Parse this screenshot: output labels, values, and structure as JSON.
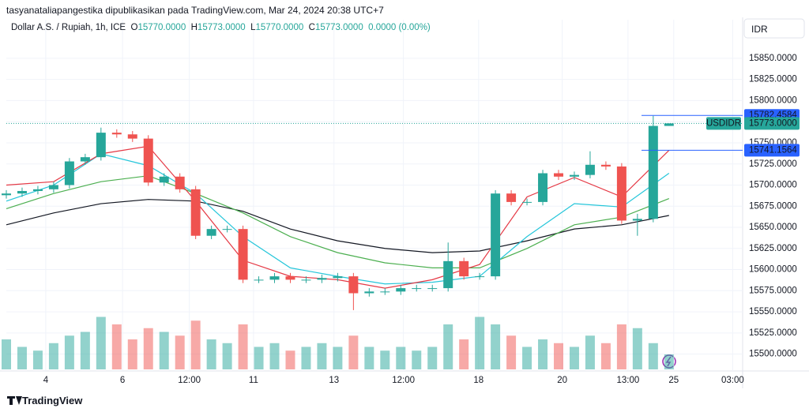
{
  "header": {
    "publisher": "tasyanataliapangestika dipublikasikan pada TradingView.com, Mar 24, 2024 20:38 UTC+7",
    "symbol": "Dollar A.S. / Rupiah, 1h, ICE",
    "o_label": "O",
    "o": "15770.0000",
    "h_label": "H",
    "h": "15773.0000",
    "l_label": "L",
    "l": "15770.0000",
    "c_label": "C",
    "c": "15773.0000",
    "change": "0.0000 (0.00%)",
    "currency": "IDR"
  },
  "footer": {
    "brand": "TradingView"
  },
  "chart_data": {
    "type": "candlestick",
    "x": [
      0,
      3,
      6,
      9,
      12,
      15,
      18,
      21,
      24,
      27,
      30,
      33,
      36,
      39,
      42,
      45,
      48,
      51,
      54,
      57,
      60,
      63,
      66,
      69,
      72,
      75,
      78,
      81,
      84,
      87,
      90,
      93,
      96,
      99,
      102,
      105,
      108,
      111,
      114,
      117,
      120,
      123,
      126
    ],
    "open": [
      15688,
      15690,
      15693,
      15695,
      15700,
      15728,
      15733,
      15762,
      15760,
      15755,
      15703,
      15710,
      15695,
      15640,
      15648,
      15648,
      15588,
      15588,
      15592,
      15588,
      15588,
      15590,
      15592,
      15572,
      15574,
      15574,
      15578,
      15578,
      15578,
      15610,
      15592,
      15592,
      15690,
      15680,
      15680,
      15714,
      15710,
      15712,
      15724,
      15722,
      15658,
      15660,
      15770
    ],
    "high": [
      15694,
      15697,
      15699,
      15704,
      15732,
      15737,
      15768,
      15766,
      15764,
      15759,
      15714,
      15714,
      15699,
      15652,
      15652,
      15652,
      15592,
      15596,
      15596,
      15592,
      15594,
      15596,
      15596,
      15578,
      15578,
      15582,
      15582,
      15582,
      15632,
      15614,
      15596,
      15694,
      15694,
      15684,
      15718,
      15718,
      15716,
      15740,
      15728,
      15726,
      15666,
      15782,
      15773
    ],
    "low": [
      15684,
      15686,
      15689,
      15691,
      15696,
      15724,
      15729,
      15756,
      15751,
      15699,
      15699,
      15691,
      15636,
      15636,
      15644,
      15584,
      15584,
      15584,
      15584,
      15584,
      15584,
      15586,
      15552,
      15568,
      15570,
      15570,
      15574,
      15574,
      15574,
      15588,
      15588,
      15588,
      15676,
      15676,
      15676,
      15706,
      15706,
      15708,
      15718,
      15654,
      15640,
      15656,
      15770
    ],
    "close": [
      15690,
      15693,
      15695,
      15700,
      15728,
      15733,
      15762,
      15760,
      15755,
      15703,
      15710,
      15695,
      15640,
      15648,
      15648,
      15588,
      15588,
      15592,
      15588,
      15588,
      15590,
      15592,
      15572,
      15574,
      15574,
      15578,
      15578,
      15578,
      15610,
      15592,
      15592,
      15690,
      15680,
      15680,
      15714,
      15710,
      15712,
      15724,
      15722,
      15658,
      15660,
      15770,
      15773
    ],
    "volume": [
      40,
      30,
      25,
      35,
      45,
      50,
      70,
      60,
      40,
      55,
      50,
      45,
      65,
      40,
      35,
      60,
      30,
      35,
      25,
      30,
      35,
      30,
      45,
      30,
      25,
      30,
      25,
      30,
      60,
      40,
      70,
      60,
      45,
      30,
      40,
      35,
      30,
      45,
      35,
      60,
      55,
      35,
      20
    ],
    "volume_lim": [
      0,
      100
    ],
    "up_color": "#26a69a",
    "down_color": "#ef5350",
    "lines": [
      {
        "color": "#131722",
        "x": [
          0,
          9,
          18,
          27,
          36,
          45,
          54,
          63,
          72,
          81,
          90,
          99,
          108,
          117,
          126
        ],
        "values": [
          15653,
          15667,
          15678,
          15683,
          15681,
          15669,
          15648,
          15634,
          15625,
          15620,
          15622,
          15634,
          15648,
          15653,
          15664
        ]
      },
      {
        "color": "#4caf50",
        "x": [
          0,
          9,
          18,
          27,
          36,
          45,
          54,
          63,
          72,
          81,
          90,
          99,
          108,
          117,
          126
        ],
        "values": [
          15672,
          15690,
          15704,
          15711,
          15690,
          15667,
          15639,
          15620,
          15608,
          15602,
          15602,
          15625,
          15653,
          15662,
          15684
        ]
      },
      {
        "color": "#26c6da",
        "x": [
          0,
          9,
          18,
          27,
          36,
          45,
          54,
          63,
          72,
          81,
          90,
          99,
          108,
          117,
          126
        ],
        "values": [
          15681,
          15700,
          15737,
          15723,
          15690,
          15639,
          15602,
          15592,
          15583,
          15585,
          15592,
          15639,
          15678,
          15674,
          15714
        ]
      },
      {
        "color": "#e53945",
        "x": [
          0,
          9,
          18,
          27,
          36,
          45,
          54,
          63,
          72,
          81,
          90,
          99,
          108,
          117,
          126
        ],
        "values": [
          15700,
          15704,
          15737,
          15746,
          15681,
          15611,
          15592,
          15588,
          15578,
          15588,
          15606,
          15686,
          15709,
          15686,
          15741.1564
        ]
      }
    ],
    "markers": [
      {
        "value": 15782.4584,
        "label": "15782.4584",
        "color": "#2962ff"
      },
      {
        "name": "USDIDR",
        "value": 15773,
        "label": "15773.0000",
        "color": "#26a69a"
      },
      {
        "value": 15741.1564,
        "label": "15741.1564",
        "color": "#2962ff"
      }
    ],
    "xlim": [
      0,
      140
    ],
    "ylim": [
      15480,
      15877
    ],
    "xticks": [
      {
        "value": 7.5,
        "label": "4"
      },
      {
        "value": 22.1,
        "label": "6"
      },
      {
        "value": 34.8,
        "label": "12:00"
      },
      {
        "value": 47,
        "label": "11"
      },
      {
        "value": 62.3,
        "label": "13"
      },
      {
        "value": 75.5,
        "label": "12:00"
      },
      {
        "value": 89.8,
        "label": "18"
      },
      {
        "value": 105.7,
        "label": "20"
      },
      {
        "value": 118.2,
        "label": "13:00"
      },
      {
        "value": 126.9,
        "label": "25"
      },
      {
        "value": 138.1,
        "label": "03:00"
      }
    ],
    "yticks": [
      {
        "value": 15500,
        "label": "15500.0000"
      },
      {
        "value": 15525,
        "label": "15525.0000"
      },
      {
        "value": 15550,
        "label": "15550.0000"
      },
      {
        "value": 15575,
        "label": "15575.0000"
      },
      {
        "value": 15600,
        "label": "15600.0000"
      },
      {
        "value": 15625,
        "label": "15625.0000"
      },
      {
        "value": 15650,
        "label": "15650.0000"
      },
      {
        "value": 15675,
        "label": "15675.0000"
      },
      {
        "value": 15700,
        "label": "15700.0000"
      },
      {
        "value": 15725,
        "label": "15725.0000"
      },
      {
        "value": 15750,
        "label": "15750.0000"
      },
      {
        "value": 15775,
        "label": "15775.0000"
      },
      {
        "value": 15800,
        "label": "15800.0000"
      },
      {
        "value": 15825,
        "label": "15825.0000"
      },
      {
        "value": 15850,
        "label": "15850.0000"
      }
    ],
    "grid": true
  }
}
